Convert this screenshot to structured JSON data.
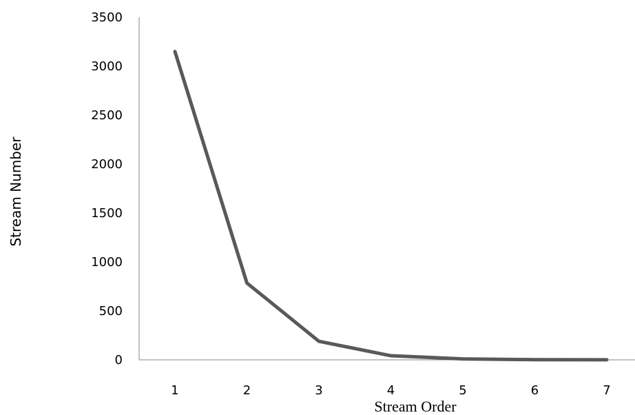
{
  "chart_data": {
    "type": "line",
    "title": "",
    "xlabel": "Stream Order",
    "ylabel": "Stream Number",
    "x": [
      1,
      2,
      3,
      4,
      5,
      6,
      7
    ],
    "series": [
      {
        "values": [
          3150,
          785,
          190,
          42,
          10,
          2,
          1
        ]
      }
    ],
    "ylim": [
      0,
      3500
    ],
    "yticks": [
      0,
      500,
      1000,
      1500,
      2000,
      2500,
      3000,
      3500
    ],
    "xticks": [
      1,
      2,
      3,
      4,
      5,
      6,
      7
    ],
    "grid": false,
    "legend": "none",
    "line_color": "#595959"
  }
}
